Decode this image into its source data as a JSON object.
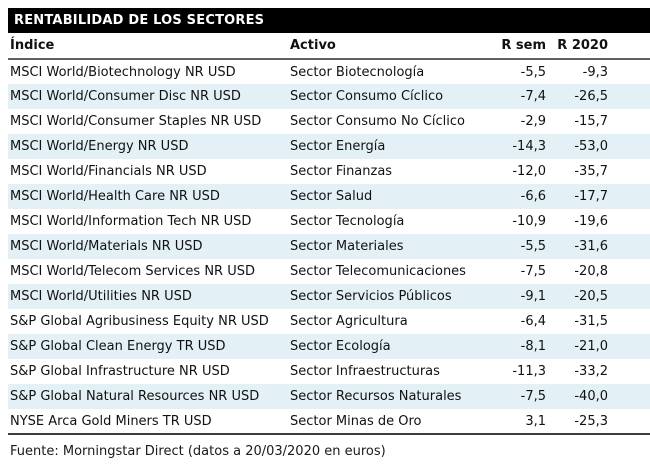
{
  "chart_data": {
    "type": "table",
    "title": "RENTABILIDAD DE LOS SECTORES",
    "columns": [
      "Índice",
      "Activo",
      "R sem",
      "R 2020"
    ],
    "rows": [
      [
        "MSCI World/Biotechnology NR USD",
        "Sector Biotecnología",
        "-5,5",
        "-9,3"
      ],
      [
        "MSCI World/Consumer Disc NR USD",
        "Sector Consumo Cíclico",
        "-7,4",
        "-26,5"
      ],
      [
        "MSCI World/Consumer Staples NR USD",
        "Sector Consumo No Cíclico",
        "-2,9",
        "-15,7"
      ],
      [
        "MSCI World/Energy NR USD",
        "Sector Energía",
        "-14,3",
        "-53,0"
      ],
      [
        "MSCI World/Financials NR USD",
        "Sector Finanzas",
        "-12,0",
        "-35,7"
      ],
      [
        "MSCI World/Health Care NR USD",
        "Sector Salud",
        "-6,6",
        "-17,7"
      ],
      [
        "MSCI World/Information Tech NR USD",
        "Sector Tecnología",
        "-10,9",
        "-19,6"
      ],
      [
        "MSCI World/Materials NR USD",
        "Sector Materiales",
        "-5,5",
        "-31,6"
      ],
      [
        "MSCI World/Telecom Services NR USD",
        "Sector Telecomunicaciones",
        "-7,5",
        "-20,8"
      ],
      [
        "MSCI World/Utilities NR USD",
        "Sector Servicios Públicos",
        "-9,1",
        "-20,5"
      ],
      [
        "S&P Global Agribusiness Equity NR USD",
        "Sector Agricultura",
        "-6,4",
        "-31,5"
      ],
      [
        "S&P Global Clean Energy TR USD",
        "Sector Ecología",
        "-8,1",
        "-21,0"
      ],
      [
        "S&P Global Infrastructure NR USD",
        "Sector Infraestructuras",
        "-11,3",
        "-33,2"
      ],
      [
        "S&P Global Natural Resources NR USD",
        "Sector Recursos Naturales",
        "-7,5",
        "-40,0"
      ],
      [
        "NYSE Arca Gold Miners TR USD",
        "Sector Minas de Oro",
        "3,1",
        "-25,3"
      ]
    ],
    "source": "Fuente: Morningstar Direct (datos a 20/03/2020 en euros)",
    "layout": {
      "striped": true,
      "stripe_color": "#e3f1f7",
      "title_bar_bg": "#000000",
      "title_bar_fg": "#ffffff",
      "numeric_columns_right_aligned": true
    }
  }
}
